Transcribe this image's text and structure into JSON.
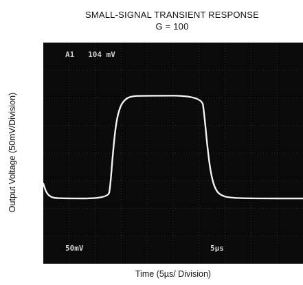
{
  "chart_data": {
    "type": "line",
    "title": "SMALL-SIGNAL TRANSIENT RESPONSE",
    "subtitle": "G = 100",
    "xlabel": "Time (5µs/ Division)",
    "ylabel": "Output Voltage (50mV/Division)",
    "xlim": [
      0,
      50
    ],
    "ylim": [
      -200,
      200
    ],
    "x_divisions": 10,
    "y_divisions": 8,
    "grid": true,
    "colors": {
      "screen": "#0a0a0a",
      "trace": "#f2f2f2",
      "grid": "#3a3a3a",
      "annotation": "#cfcfcf"
    },
    "annotations": {
      "top_left": "A1   104 mV",
      "bottom_left": "50mV",
      "bottom_right": "5µs"
    },
    "series": [
      {
        "values_description_free": true,
        "points": [
          [
            0.0,
            -55
          ],
          [
            0.6,
            -72
          ],
          [
            1.5,
            -80
          ],
          [
            3.0,
            -82
          ],
          [
            12.5,
            -82
          ],
          [
            12.9,
            -60
          ],
          [
            13.4,
            0
          ],
          [
            14.0,
            55
          ],
          [
            14.8,
            85
          ],
          [
            15.8,
            98
          ],
          [
            17.0,
            103
          ],
          [
            19.0,
            104
          ],
          [
            30.5,
            104
          ],
          [
            31.0,
            70
          ],
          [
            31.6,
            10
          ],
          [
            32.3,
            -40
          ],
          [
            33.2,
            -68
          ],
          [
            34.5,
            -78
          ],
          [
            36.5,
            -81
          ],
          [
            40.0,
            -82
          ],
          [
            50.0,
            -82
          ]
        ]
      }
    ]
  }
}
